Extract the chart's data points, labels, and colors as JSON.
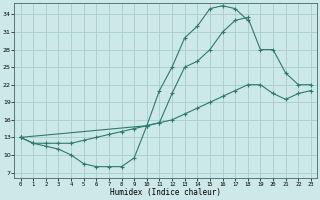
{
  "title": "",
  "xlabel": "Humidex (Indice chaleur)",
  "bg_color": "#cce8e8",
  "grid_color": "#aacccc",
  "line_color": "#2d7a6e",
  "xlim": [
    -0.5,
    23.5
  ],
  "ylim": [
    6,
    36
  ],
  "yticks": [
    7,
    10,
    13,
    16,
    19,
    22,
    25,
    28,
    31,
    34
  ],
  "xticks": [
    0,
    1,
    2,
    3,
    4,
    5,
    6,
    7,
    8,
    9,
    10,
    11,
    12,
    13,
    14,
    15,
    16,
    17,
    18,
    19,
    20,
    21,
    22,
    23
  ],
  "curve1_x": [
    0,
    1,
    2,
    3,
    4,
    5,
    6,
    7,
    8,
    9,
    10,
    11,
    12,
    13,
    14,
    15,
    16,
    17,
    18
  ],
  "curve1_y": [
    13,
    12,
    11.5,
    11,
    10,
    8.5,
    8,
    8,
    8,
    9.5,
    15,
    21,
    25,
    30,
    32,
    35,
    35.5,
    35,
    33
  ],
  "curve2_x": [
    0,
    10,
    11,
    12,
    13,
    14,
    15,
    16,
    17,
    18,
    19,
    20,
    21,
    22,
    23
  ],
  "curve2_y": [
    13,
    15,
    15.5,
    20.5,
    25,
    26,
    28,
    31,
    33,
    33.5,
    28,
    28,
    24,
    22,
    22
  ],
  "curve3_x": [
    0,
    1,
    2,
    3,
    4,
    5,
    6,
    7,
    8,
    9,
    10,
    11,
    12,
    13,
    14,
    15,
    16,
    17,
    18,
    19,
    20,
    21,
    22,
    23
  ],
  "curve3_y": [
    13,
    12,
    12,
    12,
    12,
    12.5,
    13,
    13.5,
    14,
    14.5,
    15,
    15.5,
    16,
    17,
    18,
    19,
    20,
    21,
    22,
    22,
    20.5,
    19.5,
    20.5,
    21
  ]
}
